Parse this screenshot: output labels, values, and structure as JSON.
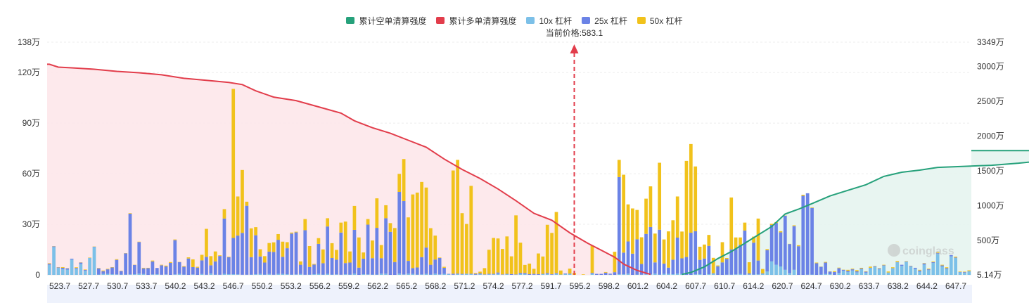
{
  "legend": [
    {
      "label": "累计空单清算强度",
      "color": "#26a17b"
    },
    {
      "label": "累计多单清算强度",
      "color": "#e23d4b"
    },
    {
      "label": "10x 杠杆",
      "color": "#7cc0e8"
    },
    {
      "label": "25x 杠杆",
      "color": "#6b83e6"
    },
    {
      "label": "50x 杠杆",
      "color": "#f1c21b"
    }
  ],
  "current_price_label": "当前价格:583.1",
  "watermark": "coinglass",
  "chart_data": {
    "type": "bar",
    "x_ticks": [
      "523.7",
      "527.7",
      "530.7",
      "533.7",
      "540.2",
      "543.2",
      "546.7",
      "550.2",
      "553.2",
      "556.2",
      "559.2",
      "562.2",
      "565.2",
      "568.2",
      "571.2",
      "574.2",
      "577.2",
      "591.7",
      "595.2",
      "598.2",
      "601.2",
      "604.2",
      "607.7",
      "610.7",
      "614.2",
      "620.7",
      "624.7",
      "630.2",
      "633.7",
      "638.2",
      "644.2",
      "647.7"
    ],
    "y_left_ticks": [
      "0",
      "30万",
      "60万",
      "90万",
      "120万",
      "138万"
    ],
    "y_right_ticks": [
      "5.14万",
      "500万",
      "1000万",
      "1500万",
      "2000万",
      "2500万",
      "3000万",
      "3349万"
    ],
    "ylim_left": [
      0,
      138
    ],
    "ylim_right": [
      5.14,
      3349
    ],
    "current_price_index": 117,
    "bar_series": [
      {
        "name": "10x 杠杆",
        "color": "#7cc0e8",
        "values": [
          6.0,
          16.5,
          4.1,
          3.4,
          3.1,
          9.1,
          3.6,
          6.5,
          2.5,
          10.1,
          16.5,
          0.2,
          0.6,
          0.6,
          0.4,
          0.3,
          0.2,
          0.2,
          0.3,
          0.4,
          0.7,
          0.5,
          0.0,
          0.3,
          0.4,
          0.1,
          0.3,
          0.0,
          0.3,
          0.6,
          0.2,
          0.0,
          0.3,
          0.0,
          0.5,
          0.1,
          0.8,
          0.2,
          0.1,
          0.6,
          0.4,
          0.4,
          0.3,
          0.1,
          0.1,
          0.2,
          0.4,
          0.6,
          0.2,
          0.5,
          0.1,
          0.6,
          0.6,
          0.4,
          0.2,
          0.3,
          0.5,
          0.1,
          0.2,
          0.4,
          0.6,
          0.2,
          0.6,
          0.2,
          0.3,
          0.1,
          0.4,
          0.2,
          0.7,
          0.0,
          0.4,
          0.3,
          0.2,
          0.2,
          0.7,
          0.7,
          0.0,
          0.0,
          0.7,
          0.3,
          0.7,
          0.6,
          0.2,
          0.3,
          0.6,
          0.2,
          0.7,
          0.3,
          0.6,
          0.4,
          0.1,
          0.5,
          0.3,
          0.6,
          0.4,
          0.1,
          0.4,
          0.1,
          0.3,
          0.3,
          0.7,
          0.1,
          0.4,
          0.0,
          0.1,
          0.6,
          0.5,
          0.0,
          0.1,
          0.0,
          0.4,
          0.6,
          0.1,
          0.7,
          0.2,
          0.4,
          0.6,
          0,
          0,
          0,
          0,
          0.7,
          0.0,
          0.0,
          0.0,
          0.1,
          0.0,
          0.4,
          0.4,
          0.7,
          0.0,
          0.2,
          0.1,
          0.3,
          0.3,
          0.7,
          0.2,
          0.6,
          0.6,
          0.4,
          0.7,
          0.5,
          0.0,
          0.0,
          0.3,
          0.4,
          0.0,
          0.4,
          0.7,
          0.0,
          0.0,
          0.1,
          0.1,
          0.3,
          0.5,
          0.1,
          0.3,
          0.2,
          0.3,
          0.6,
          2.0,
          8.0,
          6.0,
          5.0,
          3.0,
          1.0,
          3.0,
          0.0,
          0.0,
          0.1,
          0.2,
          0.0,
          0.2,
          0.5,
          0.4,
          0.0,
          1.1,
          2.4,
          1.7,
          2.6,
          1.5,
          3.3,
          1.3,
          4.0,
          4.7,
          3.3,
          5.4,
          1.4,
          3.9,
          7.4,
          5.4,
          7.8,
          4.9,
          3.6,
          1.9,
          6.1,
          2.8,
          7.1,
          12.5,
          5.0,
          3.5,
          11.0,
          10.0,
          1.5,
          1.2,
          2.1
        ]
      },
      {
        "name": "25x 杠杆",
        "color": "#6b83e6",
        "values": [
          0.6,
          0.4,
          0.3,
          0.8,
          0.8,
          0.5,
          0.5,
          0.8,
          0.4,
          0.0,
          0.2,
          3.7,
          1.6,
          2.7,
          4.0,
          8.6,
          2.1,
          12.6,
          36.0,
          5.5,
          18.8,
          3.4,
          4.0,
          7.7,
          3.7,
          5.6,
          4.7,
          7.1,
          20.3,
          7.0,
          4.6,
          9.7,
          4.3,
          4.3,
          8.1,
          10.6,
          4.9,
          7.8,
          11.1,
          32.8,
          10.1,
          21.5,
          23.0,
          24.8,
          40.9,
          10.3,
          23.1,
          10.3,
          7.1,
          13.3,
          13.5,
          20.2,
          10.1,
          15.4,
          24.3,
          24.9,
          5.5,
          26.4,
          4.5,
          5.7,
          17.8,
          6.7,
          28.1,
          9.8,
          8.7,
          25.0,
          6.6,
          7.1,
          26.0,
          4.3,
          9.2,
          29.5,
          9.7,
          27.7,
          9.2,
          32.9,
          25.5,
          7.6,
          48.5,
          43.5,
          7.6,
          3.4,
          4.2,
          10.2,
          15.6,
          5.8,
          8.4,
          9.7,
          3.6,
          0.2,
          0.6,
          0.3,
          0.3,
          0.1,
          0.3,
          0.5,
          0.5,
          0.2,
          0.3,
          0.3,
          0.7,
          0.2,
          0.2,
          0.5,
          0.2,
          0.6,
          0.6,
          0.4,
          0.5,
          0.4,
          0.2,
          0.5,
          0.3,
          0.4,
          0.0,
          0.4,
          0.2,
          0,
          0,
          0,
          0,
          0.5,
          0.6,
          0.6,
          1.3,
          0.6,
          1.6,
          57.6,
          12.8,
          19.1,
          12.6,
          20.9,
          6.4,
          24.0,
          28.1,
          6.7,
          26.6,
          6.1,
          3.7,
          8.6,
          21.4,
          9.3,
          10.6,
          25.0,
          25.6,
          8.5,
          9.7,
          16.8,
          0.3,
          5.1,
          7.4,
          9.3,
          15.0,
          15.0,
          17.3,
          26.2,
          0.6,
          18.9,
          8.2,
          0.3,
          12.7,
          21.6,
          24.8,
          20.2,
          32.1,
          17.3,
          25.9,
          17.0,
          46.9,
          48.3,
          39.5,
          6.9,
          4.6,
          6.8,
          1.6,
          1.7,
          2.9,
          0.6,
          0.7,
          0.7,
          0.6,
          0.5,
          0.6,
          0.2,
          0.4,
          0.5,
          0.3,
          0.0,
          0.1,
          0.2,
          0.6,
          0.2,
          0.4,
          0.6,
          0.7,
          0.7,
          0.5,
          0.4,
          0.5,
          0.6,
          0.5,
          0.7,
          0.3,
          0.2,
          0.4,
          0.1,
          0.3,
          0.4,
          0.5,
          0.3,
          0.7,
          0.7,
          0.6,
          0.3,
          0.1,
          0.4,
          0.1,
          0.3,
          0.5,
          0.7,
          0.0
        ]
      },
      {
        "name": "50x 杠杆",
        "color": "#f1c21b",
        "values": [
          0.3,
          0.1,
          0.1,
          0.4,
          0.1,
          0.0,
          0.4,
          0.1,
          0.3,
          0.2,
          0.1,
          0.2,
          0.4,
          0.3,
          0.2,
          0.4,
          0.1,
          0.1,
          0.3,
          0.1,
          0.2,
          0.3,
          0.2,
          0.5,
          0.0,
          0.3,
          0.5,
          0.5,
          0.4,
          0.1,
          0.4,
          0.7,
          4.6,
          0.5,
          3.3,
          16.6,
          5.4,
          5.9,
          0.4,
          5.6,
          0.3,
          88.4,
          23.2,
          37.3,
          2.4,
          17.1,
          4.8,
          4.3,
          3.8,
          5.1,
          5.7,
          3.4,
          9.0,
          3.6,
          0.6,
          0.4,
          2.0,
          6.6,
          12.4,
          0.4,
          3.4,
          8.2,
          4.9,
          8.8,
          5.8,
          5.9,
          24.6,
          6.6,
          14.2,
          17.9,
          3.7,
          3.3,
          10.5,
          17.5,
          7.8,
          7.7,
          5.2,
          20.2,
          10.7,
          24.9,
          25.8,
          43.7,
          44.4,
          44.6,
          35.6,
          21.7,
          14.2,
          0.3,
          0.6,
          0.0,
          61.2,
          67.4,
          36.0,
          29.5,
          52.1,
          0.5,
          1.0,
          3.7,
          14.3,
          21.3,
          20.2,
          15.1,
          22.2,
          10.5,
          35.0,
          17.9,
          4.8,
          6.3,
          3.0,
          12.3,
          10.3,
          28.6,
          24.5,
          36.2,
          2.4,
          0.0,
          2.9,
          1.2,
          0.0,
          0.3,
          0.0,
          16.3,
          0.0,
          0.0,
          0.4,
          0.0,
          12.1,
          10.2,
          46.2,
          22.0,
          26.8,
          17.4,
          15.8,
          20.9,
          24.1,
          17.1,
          39.7,
          14.3,
          21.5,
          23.4,
          24.4,
          15.9,
          57.0,
          52.6,
          38.4,
          7.8,
          8.3,
          6.5,
          9.1,
          0.5,
          12.0,
          0.6,
          30.8,
          6.9,
          4.4,
          4.7,
          6.6,
          3.6,
          24.9,
          2.6,
          0.6,
          0.7,
          0.5,
          0.7,
          0.1,
          0.1,
          0.5,
          0.6,
          0.6,
          0.0,
          0.3,
          0.4,
          0.1,
          0.4,
          0.1,
          0.5,
          0.3,
          0.1,
          0.6,
          0.4,
          0.7,
          0.4,
          0.2,
          0.7,
          0.2,
          0.2,
          0.3,
          0.6,
          0.5,
          0.6,
          0.0,
          0.2,
          0.1,
          0.0,
          0.4,
          0.2,
          0.4,
          0.4,
          0.5,
          0.4,
          0.5,
          0.0,
          0.5,
          0.3,
          0.3,
          0.5,
          0.1,
          0.7,
          0.4,
          0.6,
          0.1,
          0.0,
          0.1,
          0.2,
          0.3,
          0.2,
          0.2,
          0.7,
          0.5,
          0.7,
          0.6,
          0.5,
          0.2
        ]
      }
    ],
    "long_liquidation_curve": {
      "name": "累计多单清算强度",
      "color": "#e23d4b",
      "axis": "right",
      "points": [
        [
          0,
          3032
        ],
        [
          2,
          2990
        ],
        [
          5,
          2980
        ],
        [
          10,
          2960
        ],
        [
          15,
          2930
        ],
        [
          20,
          2910
        ],
        [
          25,
          2880
        ],
        [
          30,
          2830
        ],
        [
          35,
          2800
        ],
        [
          40,
          2770
        ],
        [
          43,
          2740
        ],
        [
          46,
          2650
        ],
        [
          50,
          2560
        ],
        [
          55,
          2510
        ],
        [
          60,
          2420
        ],
        [
          65,
          2330
        ],
        [
          68,
          2220
        ],
        [
          72,
          2120
        ],
        [
          76,
          2040
        ],
        [
          80,
          1940
        ],
        [
          84,
          1840
        ],
        [
          88,
          1670
        ],
        [
          92,
          1520
        ],
        [
          96,
          1390
        ],
        [
          100,
          1240
        ],
        [
          104,
          1070
        ],
        [
          108,
          890
        ],
        [
          112,
          790
        ],
        [
          116,
          610
        ],
        [
          120,
          460
        ],
        [
          123,
          360
        ],
        [
          126,
          260
        ],
        [
          128,
          160
        ],
        [
          131,
          70
        ],
        [
          134,
          12
        ]
      ]
    },
    "short_liquidation_curve": {
      "name": "累计空单清算强度",
      "color": "#26a17b",
      "axis": "right",
      "points": [
        [
          141,
          12
        ],
        [
          143,
          40
        ],
        [
          146,
          120
        ],
        [
          149,
          240
        ],
        [
          152,
          340
        ],
        [
          155,
          460
        ],
        [
          158,
          580
        ],
        [
          161,
          700
        ],
        [
          164,
          880
        ],
        [
          167,
          950
        ],
        [
          170,
          1030
        ],
        [
          174,
          1140
        ],
        [
          178,
          1220
        ],
        [
          182,
          1300
        ],
        [
          186,
          1420
        ],
        [
          190,
          1480
        ],
        [
          194,
          1510
        ],
        [
          198,
          1550
        ],
        [
          204,
          1565
        ],
        [
          210,
          1580
        ],
        [
          216,
          1610
        ],
        [
          222,
          1650
        ],
        [
          228,
          1690
        ],
        [
          234,
          1730
        ],
        [
          240,
          1760
        ],
        [
          245,
          1780
        ],
        [
          248,
          1790
        ]
      ]
    }
  }
}
